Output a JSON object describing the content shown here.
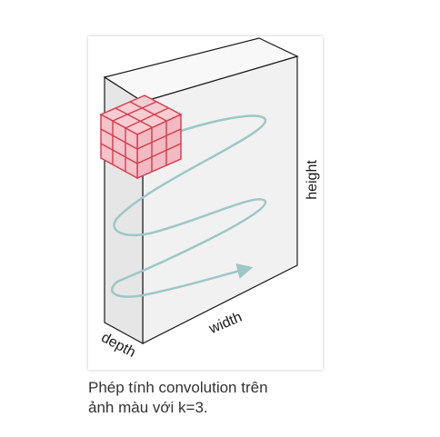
{
  "figure": {
    "labels": {
      "height": "height",
      "width": "width",
      "depth": "depth"
    },
    "colors": {
      "volume_front": "#f1f1f1",
      "volume_top": "#fafafa",
      "volume_side": "#e4e4e4",
      "edge": "#1a1a1a",
      "hidden_edge": "#b0b0b0",
      "kernel_fill": "#f5c3ca",
      "kernel_edge": "#d93a4a",
      "scan_path": "#9cc8c4"
    },
    "kernel_size": 3
  },
  "caption": {
    "line1": "Phép tính convolution trên",
    "line2": "ảnh màu với k=3."
  }
}
